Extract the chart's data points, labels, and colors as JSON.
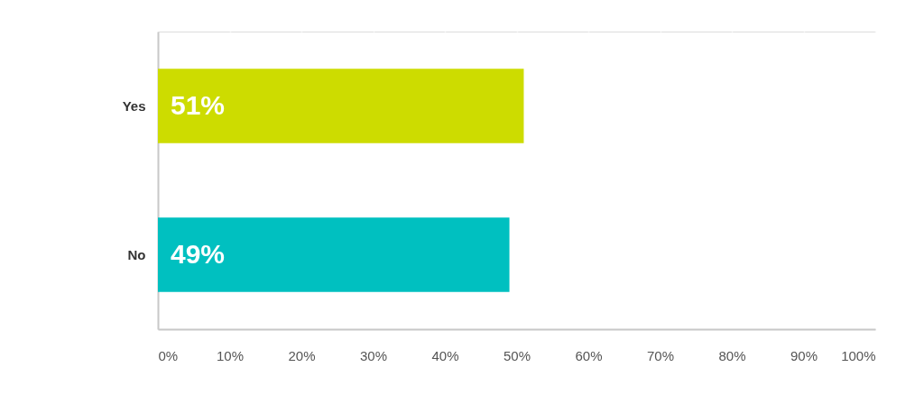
{
  "chart_data": {
    "type": "bar",
    "orientation": "horizontal",
    "categories": [
      "Yes",
      "No"
    ],
    "values": [
      51,
      49
    ],
    "colors": [
      "#cddc00",
      "#00c0c0"
    ],
    "value_labels": [
      "51%",
      "49%"
    ],
    "xlim": [
      0,
      100
    ],
    "xticks": [
      {
        "value": 0,
        "label": "0%"
      },
      {
        "value": 10,
        "label": "10%"
      },
      {
        "value": 20,
        "label": "20%"
      },
      {
        "value": 30,
        "label": "30%"
      },
      {
        "value": 40,
        "label": "40%"
      },
      {
        "value": 50,
        "label": "50%"
      },
      {
        "value": 60,
        "label": "60%"
      },
      {
        "value": 70,
        "label": "70%"
      },
      {
        "value": 80,
        "label": "80%"
      },
      {
        "value": 90,
        "label": "90%"
      },
      {
        "value": 100,
        "label": "100%"
      }
    ],
    "grid": "x"
  }
}
